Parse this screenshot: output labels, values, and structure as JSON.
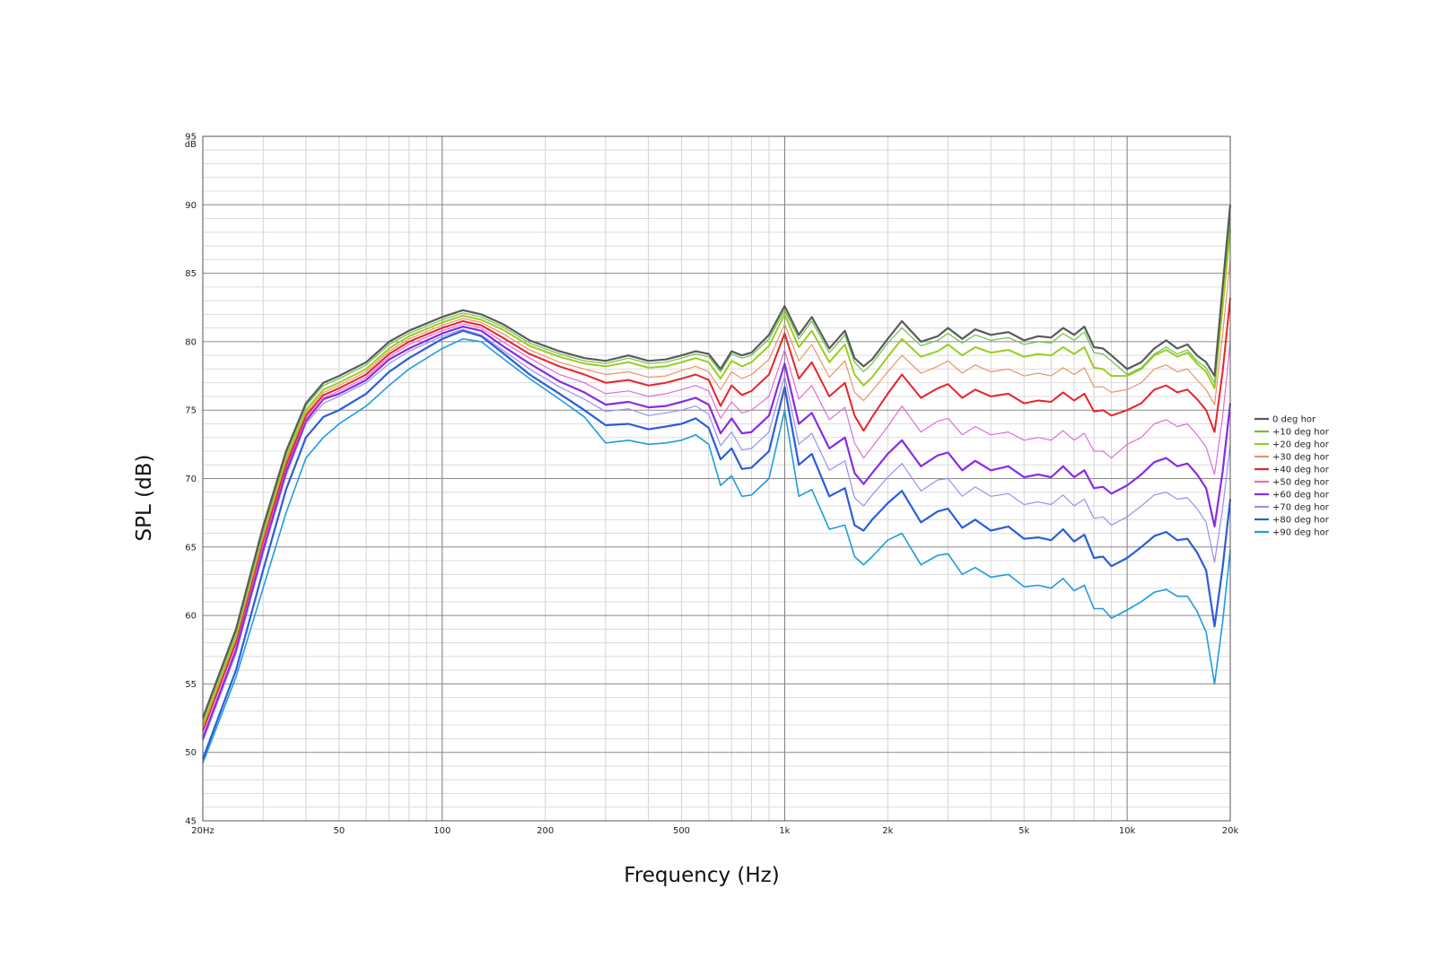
{
  "chart_data": {
    "type": "line",
    "title": "",
    "xlabel": "Frequency (Hz)",
    "ylabel": "SPL (dB)",
    "x_scale": "log",
    "xlim": [
      20,
      20000
    ],
    "ylim": [
      45,
      95
    ],
    "y_unit_label": "dB",
    "grid": true,
    "legend_position": "right",
    "x_ticks": [
      {
        "value": 20,
        "label": "20Hz"
      },
      {
        "value": 50,
        "label": "50"
      },
      {
        "value": 100,
        "label": "100"
      },
      {
        "value": 200,
        "label": "200"
      },
      {
        "value": 500,
        "label": "500"
      },
      {
        "value": 1000,
        "label": "1k"
      },
      {
        "value": 2000,
        "label": "2k"
      },
      {
        "value": 5000,
        "label": "5k"
      },
      {
        "value": 10000,
        "label": "10k"
      },
      {
        "value": 20000,
        "label": "20k"
      }
    ],
    "y_ticks": [
      45,
      50,
      55,
      60,
      65,
      70,
      75,
      80,
      85,
      90,
      95
    ],
    "x": [
      20,
      25,
      30,
      35,
      40,
      45,
      50,
      60,
      70,
      80,
      100,
      115,
      130,
      150,
      180,
      220,
      260,
      300,
      350,
      400,
      450,
      500,
      550,
      600,
      650,
      700,
      750,
      800,
      900,
      1000,
      1100,
      1200,
      1350,
      1500,
      1600,
      1700,
      1800,
      2000,
      2200,
      2500,
      2800,
      3000,
      3300,
      3600,
      4000,
      4500,
      5000,
      5500,
      6000,
      6500,
      7000,
      7500,
      8000,
      8500,
      9000,
      10000,
      11000,
      12000,
      13000,
      14000,
      15000,
      16000,
      17000,
      18000,
      19000,
      20000
    ],
    "series": [
      {
        "name": "0 deg hor",
        "color": "#5a5a5a",
        "width": 2.2,
        "values": [
          52.5,
          59.0,
          66.5,
          72.0,
          75.5,
          77.0,
          77.5,
          78.5,
          80.0,
          80.8,
          81.8,
          82.3,
          82.0,
          81.3,
          80.1,
          79.3,
          78.8,
          78.6,
          79.0,
          78.6,
          78.7,
          79.0,
          79.3,
          79.1,
          78.0,
          79.3,
          79.0,
          79.2,
          80.5,
          82.6,
          80.5,
          81.8,
          79.5,
          80.8,
          78.8,
          78.2,
          78.7,
          80.2,
          81.5,
          80.0,
          80.4,
          81.0,
          80.2,
          80.9,
          80.5,
          80.7,
          80.1,
          80.4,
          80.3,
          81.0,
          80.5,
          81.1,
          79.6,
          79.5,
          79.0,
          78.0,
          78.5,
          79.5,
          80.1,
          79.5,
          79.8,
          79.0,
          78.5,
          77.5,
          84.0,
          90.0
        ]
      },
      {
        "name": "+10 deg hor",
        "color": "#6cbf4a",
        "width": 1.2,
        "values": [
          52.3,
          58.8,
          66.2,
          71.8,
          75.3,
          76.8,
          77.3,
          78.3,
          79.8,
          80.6,
          81.6,
          82.1,
          81.8,
          81.1,
          79.9,
          79.1,
          78.6,
          78.4,
          78.8,
          78.4,
          78.5,
          78.8,
          79.1,
          78.9,
          77.8,
          79.1,
          78.8,
          79.0,
          80.2,
          82.3,
          80.2,
          81.5,
          79.2,
          80.5,
          78.5,
          77.8,
          78.4,
          79.9,
          81.0,
          79.7,
          80.1,
          80.6,
          79.9,
          80.5,
          80.1,
          80.3,
          79.8,
          80.0,
          79.9,
          80.6,
          80.1,
          80.7,
          79.2,
          79.1,
          78.6,
          77.6,
          78.1,
          79.1,
          79.6,
          79.1,
          79.4,
          78.6,
          78.1,
          77.0,
          83.5,
          89.0
        ]
      },
      {
        "name": "+20 deg hor",
        "color": "#9acd1f",
        "width": 2.0,
        "values": [
          52.0,
          58.5,
          66.0,
          71.5,
          75.0,
          76.5,
          77.0,
          78.0,
          79.5,
          80.4,
          81.4,
          81.9,
          81.6,
          80.9,
          79.7,
          78.9,
          78.4,
          78.2,
          78.5,
          78.1,
          78.2,
          78.5,
          78.8,
          78.5,
          77.3,
          78.6,
          78.2,
          78.5,
          79.7,
          82.0,
          79.6,
          80.8,
          78.5,
          79.8,
          77.6,
          76.8,
          77.4,
          78.9,
          80.2,
          78.9,
          79.3,
          79.8,
          79.0,
          79.6,
          79.2,
          79.4,
          78.9,
          79.1,
          79.0,
          79.6,
          79.1,
          79.6,
          78.1,
          78.0,
          77.5,
          77.5,
          78.0,
          79.0,
          79.4,
          78.9,
          79.2,
          78.4,
          77.8,
          76.6,
          82.5,
          88.2
        ]
      },
      {
        "name": "+30 deg hor",
        "color": "#e8946a",
        "width": 1.2,
        "values": [
          51.8,
          58.3,
          65.7,
          71.3,
          74.8,
          76.3,
          76.8,
          77.8,
          79.3,
          80.2,
          81.2,
          81.7,
          81.4,
          80.6,
          79.4,
          78.5,
          78.0,
          77.6,
          77.8,
          77.4,
          77.5,
          77.9,
          78.2,
          77.8,
          76.5,
          77.8,
          77.3,
          77.6,
          78.7,
          81.3,
          78.6,
          79.8,
          77.4,
          78.6,
          76.3,
          75.7,
          76.4,
          77.8,
          79.0,
          77.7,
          78.2,
          78.6,
          77.7,
          78.3,
          77.8,
          78.0,
          77.5,
          77.7,
          77.5,
          78.1,
          77.6,
          78.1,
          76.7,
          76.7,
          76.3,
          76.5,
          77.0,
          78.0,
          78.3,
          77.8,
          78.0,
          77.2,
          76.5,
          75.4,
          80.5,
          86.0
        ]
      },
      {
        "name": "+40 deg hor",
        "color": "#e8232a",
        "width": 2.0,
        "values": [
          51.6,
          58.1,
          65.5,
          71.0,
          74.6,
          76.1,
          76.6,
          77.6,
          79.1,
          80.0,
          81.0,
          81.5,
          81.2,
          80.3,
          79.1,
          78.2,
          77.6,
          77.0,
          77.2,
          76.8,
          77.0,
          77.3,
          77.6,
          77.2,
          75.3,
          76.8,
          76.1,
          76.4,
          77.6,
          80.6,
          77.3,
          78.5,
          76.0,
          77.0,
          74.6,
          73.5,
          74.5,
          76.2,
          77.6,
          75.9,
          76.6,
          76.9,
          75.9,
          76.5,
          76.0,
          76.2,
          75.5,
          75.7,
          75.6,
          76.3,
          75.7,
          76.2,
          74.9,
          75.0,
          74.6,
          75.0,
          75.5,
          76.5,
          76.8,
          76.3,
          76.5,
          75.8,
          75.0,
          73.4,
          77.8,
          83.2
        ]
      },
      {
        "name": "+50 deg hor",
        "color": "#e06ed6",
        "width": 1.2,
        "values": [
          51.4,
          57.9,
          65.2,
          70.8,
          74.4,
          75.9,
          76.4,
          77.4,
          78.9,
          79.8,
          80.8,
          81.3,
          81.0,
          80.0,
          78.8,
          77.6,
          77.0,
          76.2,
          76.4,
          76.0,
          76.2,
          76.5,
          76.8,
          76.4,
          74.4,
          75.6,
          74.8,
          75.0,
          76.0,
          79.4,
          75.8,
          76.8,
          74.3,
          75.2,
          72.6,
          71.5,
          72.3,
          73.8,
          75.3,
          73.4,
          74.2,
          74.4,
          73.2,
          73.8,
          73.2,
          73.4,
          72.8,
          73.0,
          72.8,
          73.5,
          72.8,
          73.3,
          72.0,
          72.0,
          71.5,
          72.5,
          73.0,
          74.0,
          74.3,
          73.8,
          74.0,
          73.2,
          72.3,
          70.3,
          74.5,
          80.0
        ]
      },
      {
        "name": "+60 deg hor",
        "color": "#8a2be2",
        "width": 2.2,
        "values": [
          51.0,
          57.5,
          64.8,
          70.5,
          74.2,
          75.8,
          76.2,
          77.2,
          78.7,
          79.5,
          80.6,
          81.1,
          80.8,
          79.7,
          78.4,
          77.1,
          76.3,
          75.4,
          75.6,
          75.2,
          75.3,
          75.6,
          75.9,
          75.4,
          73.3,
          74.4,
          73.3,
          73.4,
          74.6,
          78.4,
          74.0,
          74.8,
          72.2,
          73.0,
          70.4,
          69.6,
          70.4,
          71.8,
          72.8,
          70.9,
          71.7,
          71.9,
          70.6,
          71.3,
          70.6,
          70.9,
          70.1,
          70.3,
          70.1,
          70.9,
          70.1,
          70.6,
          69.3,
          69.4,
          68.9,
          69.5,
          70.3,
          71.2,
          71.5,
          70.9,
          71.1,
          70.3,
          69.3,
          66.5,
          70.5,
          75.5
        ]
      },
      {
        "name": "+70 deg hor",
        "color": "#9a8ef0",
        "width": 1.2,
        "values": [
          50.8,
          57.2,
          64.5,
          70.2,
          74.0,
          75.5,
          76.0,
          77.0,
          78.4,
          79.3,
          80.4,
          80.9,
          80.5,
          79.4,
          78.0,
          76.7,
          75.8,
          74.9,
          75.1,
          74.6,
          74.8,
          75.0,
          75.3,
          74.7,
          72.4,
          73.4,
          72.1,
          72.2,
          73.4,
          77.5,
          72.5,
          73.3,
          70.6,
          71.3,
          68.6,
          68.0,
          68.8,
          70.1,
          71.1,
          69.1,
          69.9,
          70.0,
          68.7,
          69.4,
          68.7,
          68.9,
          68.1,
          68.3,
          68.1,
          68.8,
          68.0,
          68.5,
          67.1,
          67.2,
          66.6,
          67.2,
          68.0,
          68.8,
          69.0,
          68.5,
          68.6,
          67.8,
          66.8,
          63.9,
          67.8,
          72.5
        ]
      },
      {
        "name": "+80 deg hor",
        "color": "#2a5ed8",
        "width": 2.2,
        "values": [
          49.5,
          56.0,
          63.3,
          69.2,
          73.0,
          74.5,
          75.0,
          76.2,
          77.8,
          78.8,
          80.2,
          80.8,
          80.4,
          79.2,
          77.6,
          76.2,
          75.0,
          73.9,
          74.0,
          73.6,
          73.8,
          74.0,
          74.4,
          73.7,
          71.4,
          72.2,
          70.7,
          70.8,
          72.0,
          76.7,
          71.0,
          71.8,
          68.7,
          69.3,
          66.6,
          66.2,
          67.0,
          68.2,
          69.1,
          66.8,
          67.6,
          67.8,
          66.4,
          67.0,
          66.2,
          66.5,
          65.6,
          65.7,
          65.5,
          66.3,
          65.4,
          65.9,
          64.2,
          64.3,
          63.6,
          64.2,
          65.0,
          65.8,
          66.1,
          65.5,
          65.6,
          64.6,
          63.3,
          59.2,
          63.5,
          68.5
        ]
      },
      {
        "name": "+90 deg hor",
        "color": "#1e9be0",
        "width": 1.6,
        "values": [
          49.2,
          55.5,
          62.0,
          67.5,
          71.5,
          73.0,
          74.0,
          75.3,
          76.8,
          78.0,
          79.5,
          80.2,
          80.0,
          78.8,
          77.3,
          75.8,
          74.5,
          72.6,
          72.8,
          72.5,
          72.6,
          72.8,
          73.2,
          72.5,
          69.5,
          70.2,
          68.7,
          68.8,
          70.0,
          75.0,
          68.7,
          69.2,
          66.3,
          66.6,
          64.3,
          63.7,
          64.3,
          65.5,
          66.0,
          63.7,
          64.4,
          64.5,
          63.0,
          63.5,
          62.8,
          63.0,
          62.1,
          62.2,
          62.0,
          62.7,
          61.8,
          62.2,
          60.5,
          60.5,
          59.8,
          60.4,
          61.0,
          61.7,
          61.9,
          61.4,
          61.4,
          60.3,
          58.8,
          55.0,
          59.5,
          64.8
        ]
      }
    ]
  }
}
